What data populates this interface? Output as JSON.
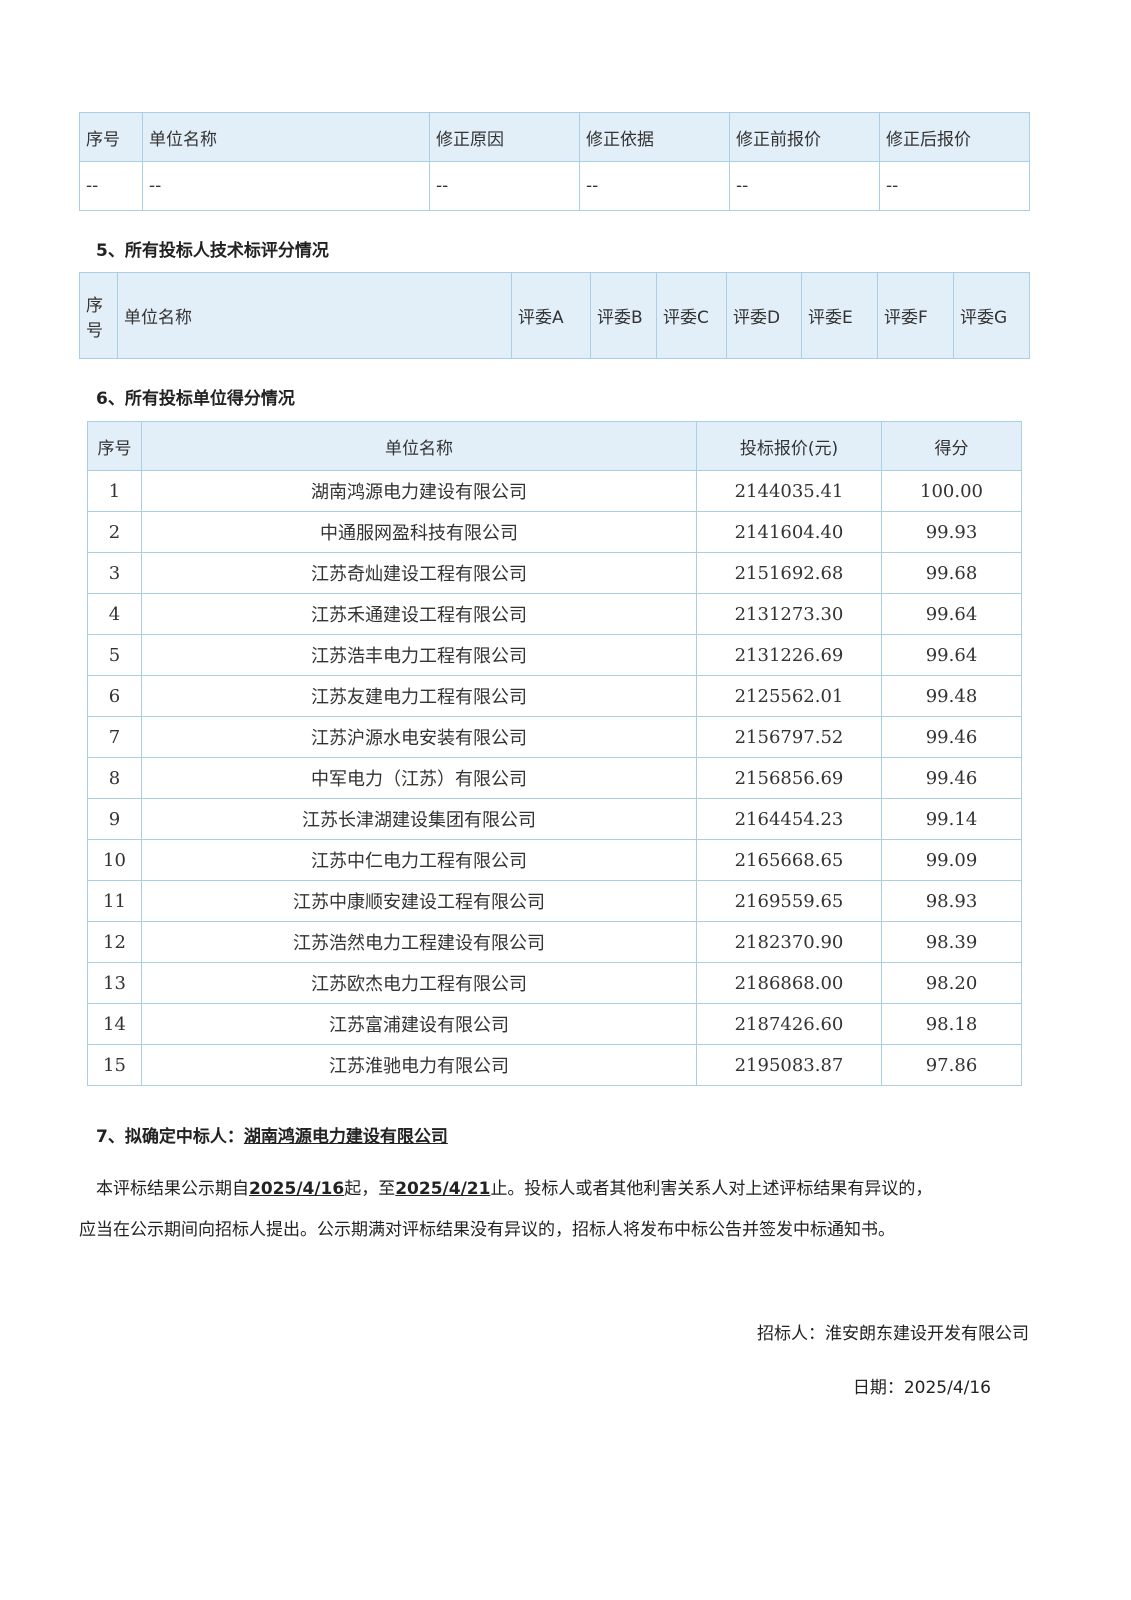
{
  "correction_table": {
    "headers": [
      "序号",
      "单位名称",
      "修正原因",
      "修正依据",
      "修正前报价",
      "修正后报价"
    ],
    "row": [
      "--",
      "--",
      "--",
      "--",
      "--",
      "--"
    ]
  },
  "section5": {
    "title": "5、所有投标人技术标评分情况",
    "headers": [
      "序号",
      "单位名称",
      "评委A",
      "评委B",
      "评委C",
      "评委D",
      "评委E",
      "评委F",
      "评委G"
    ]
  },
  "section6": {
    "title": "6、所有投标单位得分情况",
    "headers": [
      "序号",
      "单位名称",
      "投标报价(元)",
      "得分"
    ],
    "rows": [
      [
        "1",
        "湖南鸿源电力建设有限公司",
        "2144035.41",
        "100.00"
      ],
      [
        "2",
        "中通服网盈科技有限公司",
        "2141604.40",
        "99.93"
      ],
      [
        "3",
        "江苏奇灿建设工程有限公司",
        "2151692.68",
        "99.68"
      ],
      [
        "4",
        "江苏禾通建设工程有限公司",
        "2131273.30",
        "99.64"
      ],
      [
        "5",
        "江苏浩丰电力工程有限公司",
        "2131226.69",
        "99.64"
      ],
      [
        "6",
        "江苏友建电力工程有限公司",
        "2125562.01",
        "99.48"
      ],
      [
        "7",
        "江苏沪源水电安装有限公司",
        "2156797.52",
        "99.46"
      ],
      [
        "8",
        "中军电力（江苏）有限公司",
        "2156856.69",
        "99.46"
      ],
      [
        "9",
        "江苏长津湖建设集团有限公司",
        "2164454.23",
        "99.14"
      ],
      [
        "10",
        "江苏中仁电力工程有限公司",
        "2165668.65",
        "99.09"
      ],
      [
        "11",
        "江苏中康顺安建设工程有限公司",
        "2169559.65",
        "98.93"
      ],
      [
        "12",
        "江苏浩然电力工程建设有限公司",
        "2182370.90",
        "98.39"
      ],
      [
        "13",
        "江苏欧杰电力工程有限公司",
        "2186868.00",
        "98.20"
      ],
      [
        "14",
        "江苏富浦建设有限公司",
        "2187426.60",
        "98.18"
      ],
      [
        "15",
        "江苏淮驰电力有限公司",
        "2195083.87",
        "97.86"
      ]
    ]
  },
  "section7": {
    "label": "7、拟确定中标人：",
    "winner": "湖南鸿源电力建设有限公司"
  },
  "notice": {
    "p1a": "本评标结果公示期自",
    "start": "2025/4/16",
    "p1b": "起，至",
    "end": "2025/4/21",
    "p1c": "止。投标人或者其他利害关系人对上述评标结果有异议的，",
    "p2": "应当在公示期间向招标人提出。公示期满对评标结果没有异议的，招标人将发布中标公告并签发中标通知书。"
  },
  "footer": {
    "tenderer": "招标人：淮安朗东建设开发有限公司",
    "date": "日期：2025/4/16"
  }
}
